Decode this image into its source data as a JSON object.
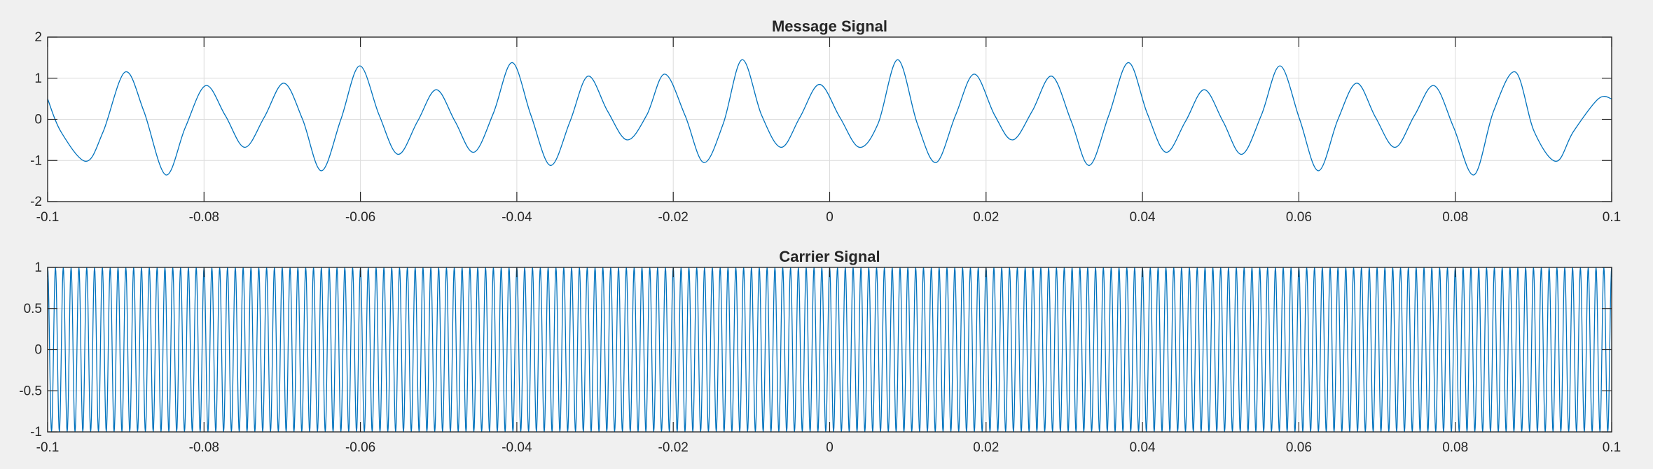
{
  "colors": {
    "background": "#f0f0f0",
    "axes_background": "#ffffff",
    "line": "#0072bd",
    "grid": "#dcdcdc",
    "axis": "#262626"
  },
  "chart_data": [
    {
      "type": "line",
      "title": "Message Signal",
      "xlabel": "",
      "ylabel": "",
      "xlim": [
        -0.1,
        0.1
      ],
      "ylim": [
        -2,
        2
      ],
      "grid": true,
      "xticks": [
        -0.1,
        -0.08,
        -0.06,
        -0.04,
        -0.02,
        0,
        0.02,
        0.04,
        0.06,
        0.08,
        0.1
      ],
      "xtick_labels": [
        "-0.1",
        "-0.08",
        "-0.06",
        "-0.04",
        "-0.02",
        "0",
        "0.02",
        "0.04",
        "0.06",
        "0.08",
        "0.1"
      ],
      "yticks": [
        -2,
        -1,
        0,
        1,
        2
      ],
      "ytick_labels": [
        "-2",
        "-1",
        "0",
        "1",
        "2"
      ],
      "series": [
        {
          "x": [
            -0.1,
            -0.0983,
            -0.0951,
            -0.0929,
            -0.0901,
            -0.0877,
            -0.0849,
            -0.0824,
            -0.0798,
            -0.0773,
            -0.0748,
            -0.0723,
            -0.0698,
            -0.0674,
            -0.065,
            -0.0625,
            -0.0601,
            -0.0576,
            -0.0552,
            -0.0527,
            -0.0503,
            -0.0479,
            -0.0455,
            -0.043,
            -0.0406,
            -0.0382,
            -0.0357,
            -0.0332,
            -0.0309,
            -0.0284,
            -0.0259,
            -0.0234,
            -0.0211,
            -0.0185,
            -0.0161,
            -0.0136,
            -0.0112,
            -0.0087,
            -0.0062,
            -0.0038,
            -0.0013,
            0.0013,
            0.0038,
            0.0062,
            0.0087,
            0.0112,
            0.0136,
            0.0161,
            0.0185,
            0.0211,
            0.0234,
            0.0259,
            0.0284,
            0.0309,
            0.0332,
            0.0357,
            0.0382,
            0.0406,
            0.043,
            0.0455,
            0.0479,
            0.0503,
            0.0527,
            0.0552,
            0.0576,
            0.0601,
            0.0625,
            0.065,
            0.0674,
            0.0698,
            0.0723,
            0.0748,
            0.0773,
            0.0798,
            0.0824,
            0.0849,
            0.0877,
            0.0901,
            0.0929,
            0.0951,
            0.0983,
            0.1
          ],
          "y": [
            0.5,
            -0.3,
            -1.02,
            -0.3,
            1.15,
            0.2,
            -1.35,
            -0.2,
            0.82,
            0.1,
            -0.68,
            0.05,
            0.88,
            0.0,
            -1.25,
            0.0,
            1.3,
            0.1,
            -0.85,
            -0.05,
            0.72,
            -0.05,
            -0.8,
            0.15,
            1.38,
            0.1,
            -1.12,
            -0.05,
            1.05,
            0.2,
            -0.5,
            0.1,
            1.1,
            0.1,
            -1.05,
            -0.1,
            1.45,
            0.1,
            -0.68,
            0.05,
            0.85,
            0.05,
            -0.68,
            -0.1,
            1.45,
            -0.1,
            -1.05,
            0.1,
            1.1,
            0.1,
            -0.5,
            0.2,
            1.05,
            -0.05,
            -1.12,
            0.1,
            1.38,
            0.15,
            -0.8,
            -0.05,
            0.72,
            -0.05,
            -0.85,
            0.1,
            1.3,
            0.0,
            -1.25,
            0.0,
            0.88,
            0.05,
            -0.68,
            0.1,
            0.82,
            -0.2,
            -1.35,
            0.2,
            1.15,
            -0.3,
            -1.02,
            -0.3,
            0.5,
            0.5
          ]
        }
      ]
    },
    {
      "type": "line",
      "title": "Carrier Signal",
      "xlabel": "",
      "ylabel": "",
      "xlim": [
        -0.1,
        0.1
      ],
      "ylim": [
        -1,
        1
      ],
      "grid": true,
      "xticks": [
        -0.1,
        -0.08,
        -0.06,
        -0.04,
        -0.02,
        0,
        0.02,
        0.04,
        0.06,
        0.08,
        0.1
      ],
      "xtick_labels": [
        "-0.1",
        "-0.08",
        "-0.06",
        "-0.04",
        "-0.02",
        "0",
        "0.02",
        "0.04",
        "0.06",
        "0.08",
        "0.1"
      ],
      "yticks": [
        -1,
        -0.5,
        0,
        0.5,
        1
      ],
      "ytick_labels": [
        "-1",
        "-0.5",
        "0",
        "0.5",
        "1"
      ],
      "series": [
        {
          "function": "cos",
          "amplitude": 1,
          "frequency_hz": 1000,
          "x_start": -0.1,
          "x_end": 0.1
        }
      ]
    }
  ]
}
